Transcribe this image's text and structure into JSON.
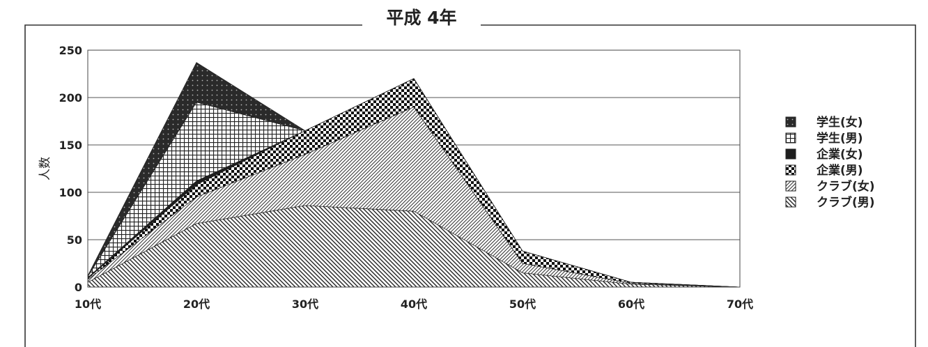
{
  "chart_data": {
    "type": "area",
    "title": "平成 4年",
    "xlabel": "",
    "ylabel": "人数",
    "categories": [
      "10代",
      "20代",
      "30代",
      "40代",
      "50代",
      "60代",
      "70代"
    ],
    "yticks": [
      "250",
      "200",
      "150",
      "100",
      "50",
      "0"
    ],
    "ylim": [
      0,
      250
    ],
    "grid": true,
    "legend_position": "right",
    "series": [
      {
        "name": "クラブ(男)",
        "values": [
          5,
          67,
          86,
          80,
          15,
          3,
          0
        ],
        "pattern": "diag-right"
      },
      {
        "name": "クラブ(女)",
        "values": [
          8,
          95,
          140,
          190,
          25,
          4,
          0
        ],
        "pattern": "diag-left"
      },
      {
        "name": "企業(男)",
        "values": [
          9,
          108,
          165,
          220,
          38,
          5,
          0
        ],
        "pattern": "checker"
      },
      {
        "name": "企業(女)",
        "values": [
          10,
          112,
          165,
          220,
          38,
          5,
          0
        ],
        "pattern": "solid-dark"
      },
      {
        "name": "学生(男)",
        "values": [
          11,
          195,
          165,
          220,
          38,
          5,
          0
        ],
        "pattern": "grid"
      },
      {
        "name": "学生(女)",
        "values": [
          12,
          237,
          165,
          220,
          38,
          5,
          0
        ],
        "pattern": "dark-dots"
      }
    ],
    "legend": [
      "学生(女)",
      "学生(男)",
      "企業(女)",
      "企業(男)",
      "クラブ(女)",
      "クラブ(男)"
    ]
  }
}
